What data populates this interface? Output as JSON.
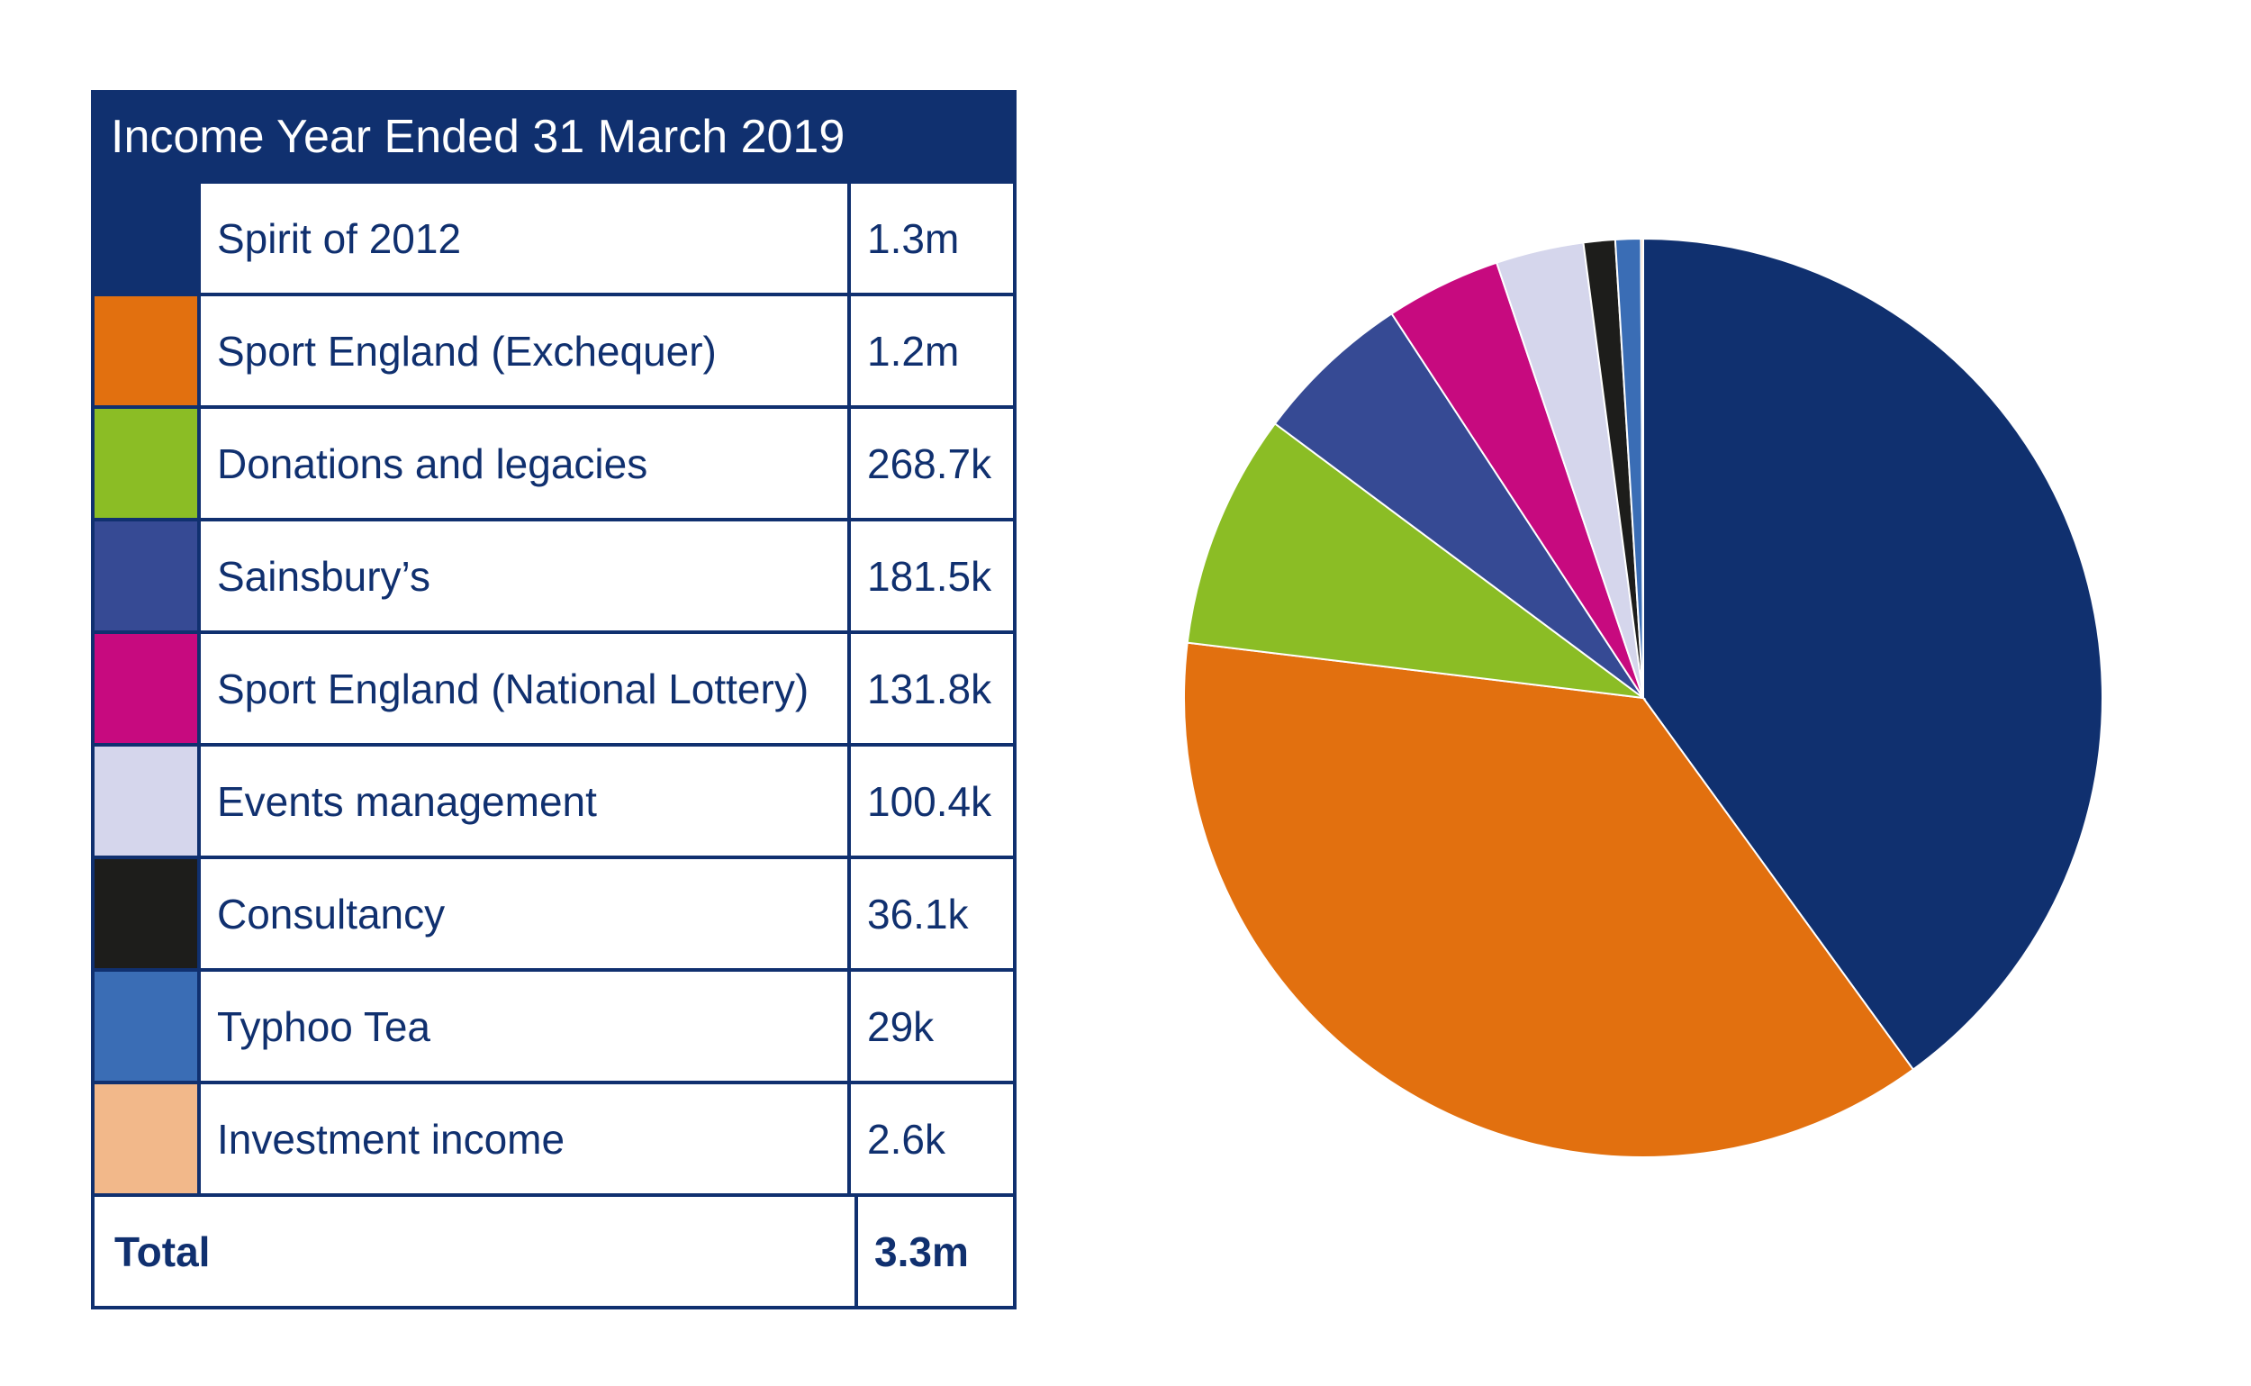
{
  "table": {
    "title": "Income Year Ended 31 March 2019",
    "rows": [
      {
        "label": "Spirit of 2012",
        "value": "1.3m",
        "color": "#10306f"
      },
      {
        "label": "Sport England (Exchequer)",
        "value": "1.2m",
        "color": "#e2700f"
      },
      {
        "label": "Donations and legacies",
        "value": "268.7k",
        "color": "#8bbd25"
      },
      {
        "label": "Sainsbury’s",
        "value": "181.5k",
        "color": "#364a94"
      },
      {
        "label": "Sport England (National Lottery)",
        "value": "131.8k",
        "color": "#c70a7f"
      },
      {
        "label": "Events management",
        "value": "100.4k",
        "color": "#d5d6ec"
      },
      {
        "label": "Consultancy",
        "value": "36.1k",
        "color": "#1d1d1b"
      },
      {
        "label": "Typhoo Tea",
        "value": "29k",
        "color": "#3a6db5"
      },
      {
        "label": "Investment income",
        "value": "2.6k",
        "color": "#f2b88a"
      }
    ],
    "total_label": "Total",
    "total_value": "3.3m"
  },
  "chart_data": {
    "type": "pie",
    "title": "Income Year Ended 31 March 2019",
    "categories": [
      "Spirit of 2012",
      "Sport England (Exchequer)",
      "Donations and legacies",
      "Sainsbury’s",
      "Sport England (National Lottery)",
      "Events management",
      "Consultancy",
      "Typhoo Tea",
      "Investment income"
    ],
    "values": [
      1300000,
      1200000,
      268700,
      181500,
      131800,
      100400,
      36100,
      29000,
      2600
    ],
    "colors": [
      "#10306f",
      "#e2700f",
      "#8bbd25",
      "#364a94",
      "#c70a7f",
      "#d5d6ec",
      "#1d1d1b",
      "#3a6db5",
      "#f2b88a"
    ],
    "start_angle_deg": 0,
    "direction": "clockwise"
  }
}
